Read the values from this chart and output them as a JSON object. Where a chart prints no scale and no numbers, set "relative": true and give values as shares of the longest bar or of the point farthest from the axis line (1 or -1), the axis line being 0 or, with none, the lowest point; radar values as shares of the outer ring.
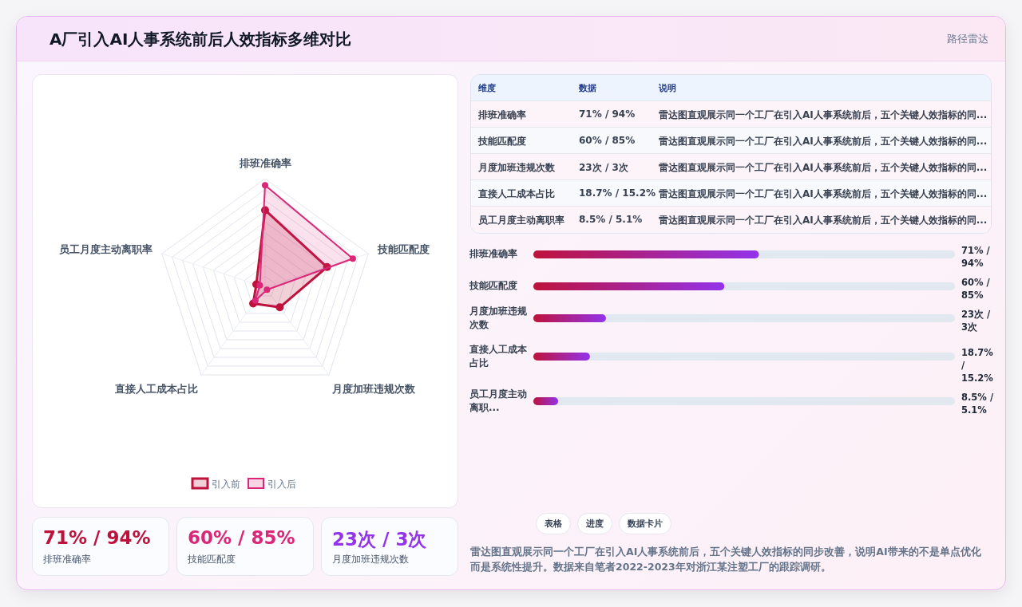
{
  "chart_data": [
    {
      "type": "other",
      "title": "A厂引入AI人事系统前后人效指标多维对比",
      "subtitle": "路径雷达"
    },
    {
      "type": "radar",
      "relative": true,
      "legend": "bottom",
      "marker": "circle",
      "categories": [
        "排班准确率",
        "技能匹配度",
        "月度加班违规次数",
        "直接人工成本占比",
        "员工月度主动离职率"
      ],
      "series": [
        {
          "name": "引入前",
          "color": "#be123c",
          "values": [
            0.71,
            0.6,
            0.23,
            0.187,
            0.085
          ]
        },
        {
          "name": "引入后",
          "color": "#db2777",
          "values": [
            0.94,
            0.85,
            0.03,
            0.152,
            0.051
          ]
        }
      ]
    },
    {
      "type": "other",
      "annotations": [
        "维度",
        "数据",
        "说明",
        "排班准确率",
        "71% / 94%",
        "雷达图直观展示同一个工厂在引入AI人事系统前后，五个关键人效指标的同...",
        "技能匹配度",
        "60% / 85%",
        "雷达图直观展示同一个工厂在引入AI人事系统前后，五个关键人效指标的同...",
        "月度加班违规次数",
        "23次 / 3次",
        "雷达图直观展示同一个工厂在引入AI人事系统前后，五个关键人效指标的同...",
        "直接人工成本占比",
        "18.7% / 15.2%",
        "雷达图直观展示同一个工厂在引入AI人事系统前后，五个关键人效指标的同...",
        "员工月度主动离职率",
        "8.5% / 5.1%",
        "雷达图直观展示同一个工厂在引入AI人事系统前后，五个关键人效指标的同..."
      ]
    },
    {
      "type": "bar",
      "orientation": "horizontal",
      "relative": true,
      "categories": [
        "排班准确率",
        "技能匹配度",
        "月度加班违规次数",
        "直接人工成本占比",
        "员工月度主动离职..."
      ],
      "series": [
        {
          "color": "#be123c",
          "values": [
            1,
            0.847,
            0.322,
            0.251,
            0.11
          ]
        }
      ],
      "value_labels": [
        "71% / 94%",
        "60% / 85%",
        "23次 / 3次",
        "18.7% / 15.2%",
        "8.5% / 5.1%"
      ]
    },
    {
      "type": "other",
      "annotations": [
        "71% / 94%",
        "排班准确率",
        "60% / 85%",
        "技能匹配度",
        "23次 / 3次",
        "月度加班违规次数"
      ]
    },
    {
      "type": "other",
      "annotations": [
        "表格",
        "进度",
        "数据卡片",
        "雷达图直观展示同一个工厂在引入AI人事系统前后，五个关键人效指标的同步改善，说明AI带来的不是单点优化而是系统性提升。数据来自笔者2022-2023年对浙江某注塑工厂的跟踪调研。"
      ]
    }
  ]
}
